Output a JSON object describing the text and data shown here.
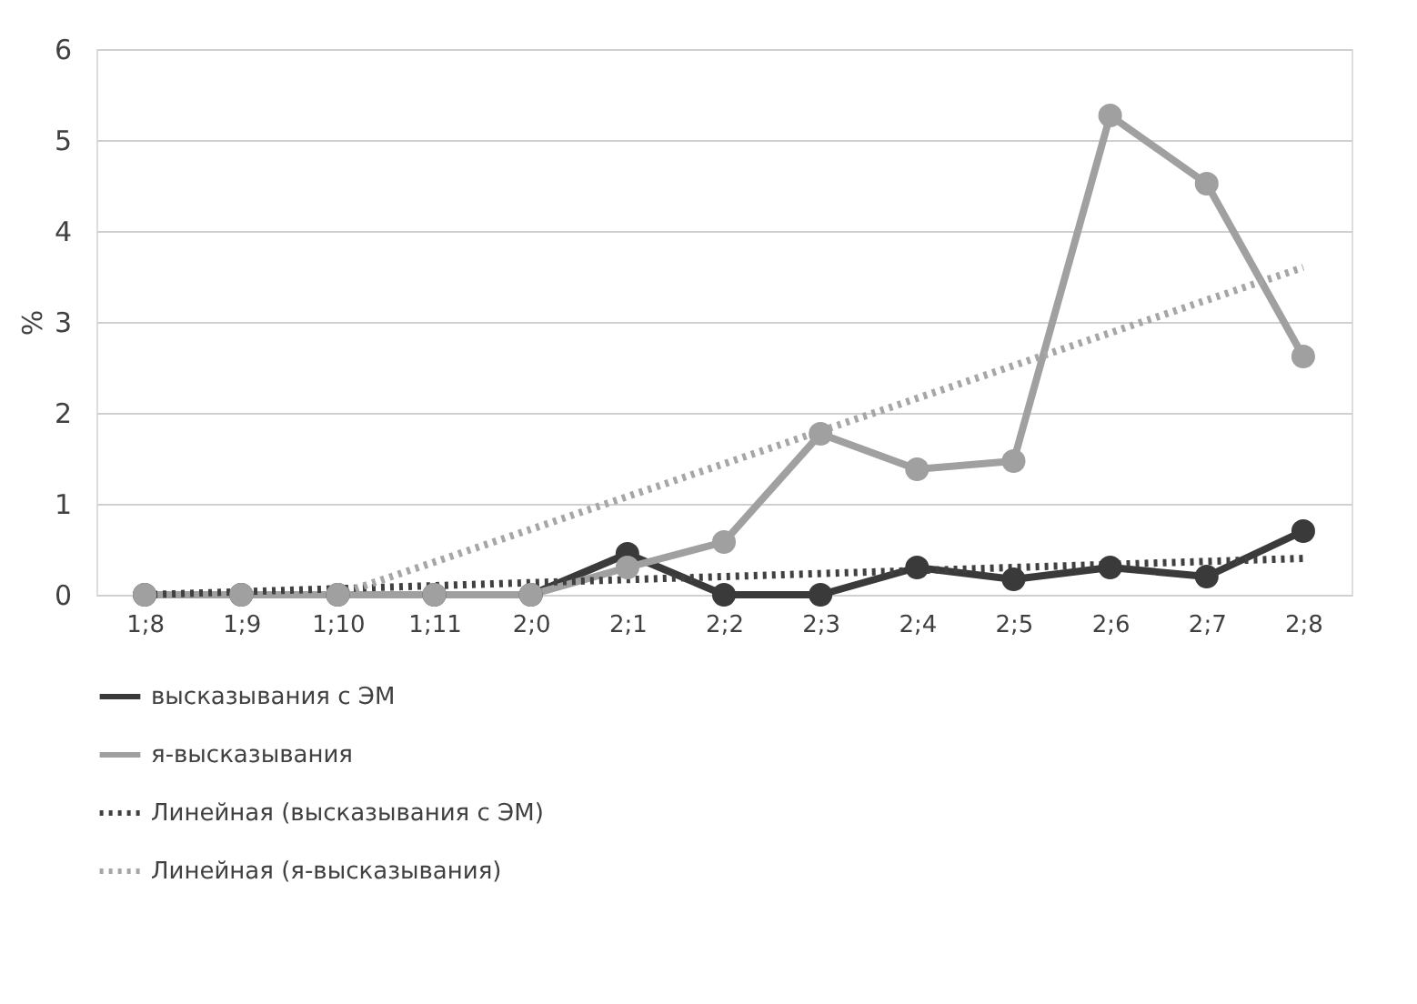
{
  "chart_data": {
    "type": "line",
    "ylabel": "%",
    "categories": [
      "1;8",
      "1;9",
      "1;10",
      "1;11",
      "2;0",
      "2;1",
      "2;2",
      "2;3",
      "2;4",
      "2;5",
      "2;6",
      "2;7",
      "2;8"
    ],
    "series": [
      {
        "name": "высказывания с ЭМ",
        "color": "#3a3a3a",
        "marker": "circle",
        "line_style": "solid",
        "values": [
          0,
          0,
          0,
          0,
          0,
          0.45,
          0,
          0,
          0.3,
          0.17,
          0.3,
          0.2,
          0.7
        ]
      },
      {
        "name": "я-высказывания",
        "color": "#a0a0a0",
        "marker": "circle",
        "line_style": "solid",
        "values": [
          0,
          0,
          0,
          0,
          0,
          0.3,
          0.58,
          1.77,
          1.38,
          1.47,
          5.27,
          4.52,
          2.62
        ]
      },
      {
        "name": "Линейная (высказывания с ЭМ)",
        "color": "#404040",
        "type": "line",
        "marker": "none",
        "line_style": "dotted",
        "x": [
          "1;8",
          "2;8"
        ],
        "values": [
          0,
          0.4
        ]
      },
      {
        "name": "Линейная (я-высказывания)",
        "color": "#a6a6a6",
        "type": "line",
        "marker": "none",
        "line_style": "dotted",
        "x": [
          "1;10",
          "2;8"
        ],
        "values": [
          0,
          3.6
        ]
      }
    ],
    "ylim": [
      0,
      6
    ],
    "yticks": [
      0,
      1,
      2,
      3,
      4,
      5,
      6
    ],
    "grid": "y",
    "legend": "bottom"
  }
}
